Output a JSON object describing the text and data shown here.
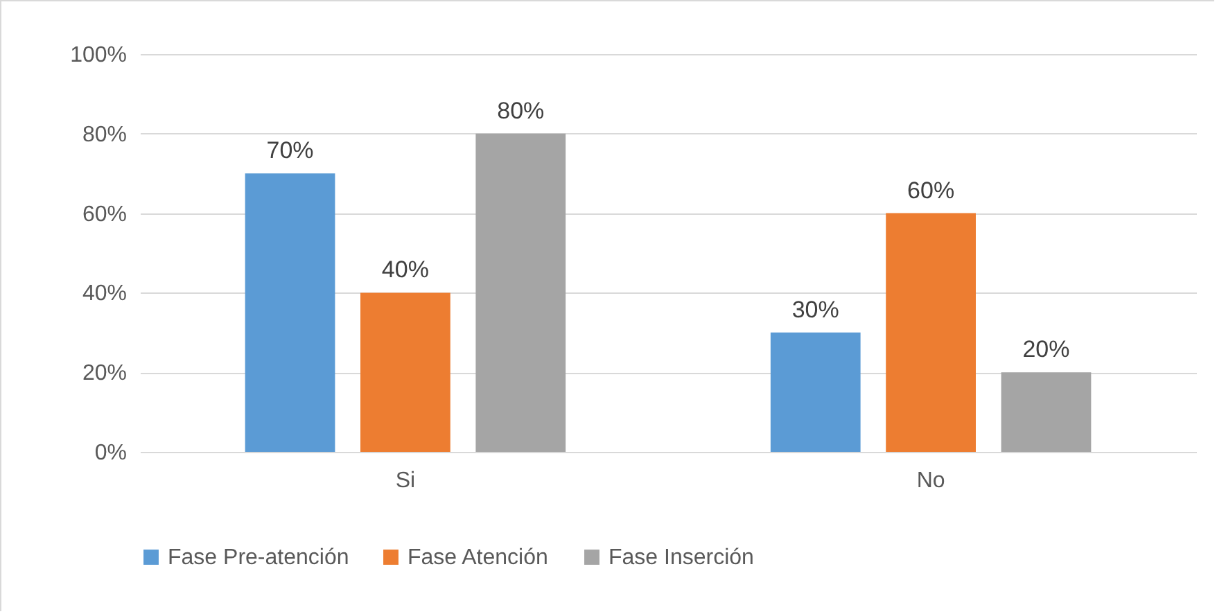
{
  "chart_data": {
    "type": "bar",
    "categories": [
      "Si",
      "No"
    ],
    "series": [
      {
        "name": "Fase Pre-atención",
        "color": "#5b9bd5",
        "values": [
          70,
          30
        ],
        "value_labels": [
          "70%",
          "30%"
        ]
      },
      {
        "name": "Fase Atención",
        "color": "#ed7d31",
        "values": [
          40,
          60
        ],
        "value_labels": [
          "40%",
          "60%"
        ]
      },
      {
        "name": "Fase Inserción",
        "color": "#a5a5a5",
        "values": [
          80,
          20
        ],
        "value_labels": [
          "80%",
          "20%"
        ]
      }
    ],
    "ylim": [
      0,
      100
    ],
    "yticks": [
      {
        "value": 0,
        "label": "0%"
      },
      {
        "value": 20,
        "label": "20%"
      },
      {
        "value": 40,
        "label": "40%"
      },
      {
        "value": 60,
        "label": "60%"
      },
      {
        "value": 80,
        "label": "80%"
      },
      {
        "value": 100,
        "label": "100%"
      }
    ],
    "grid": "y",
    "legend": "bottom"
  }
}
